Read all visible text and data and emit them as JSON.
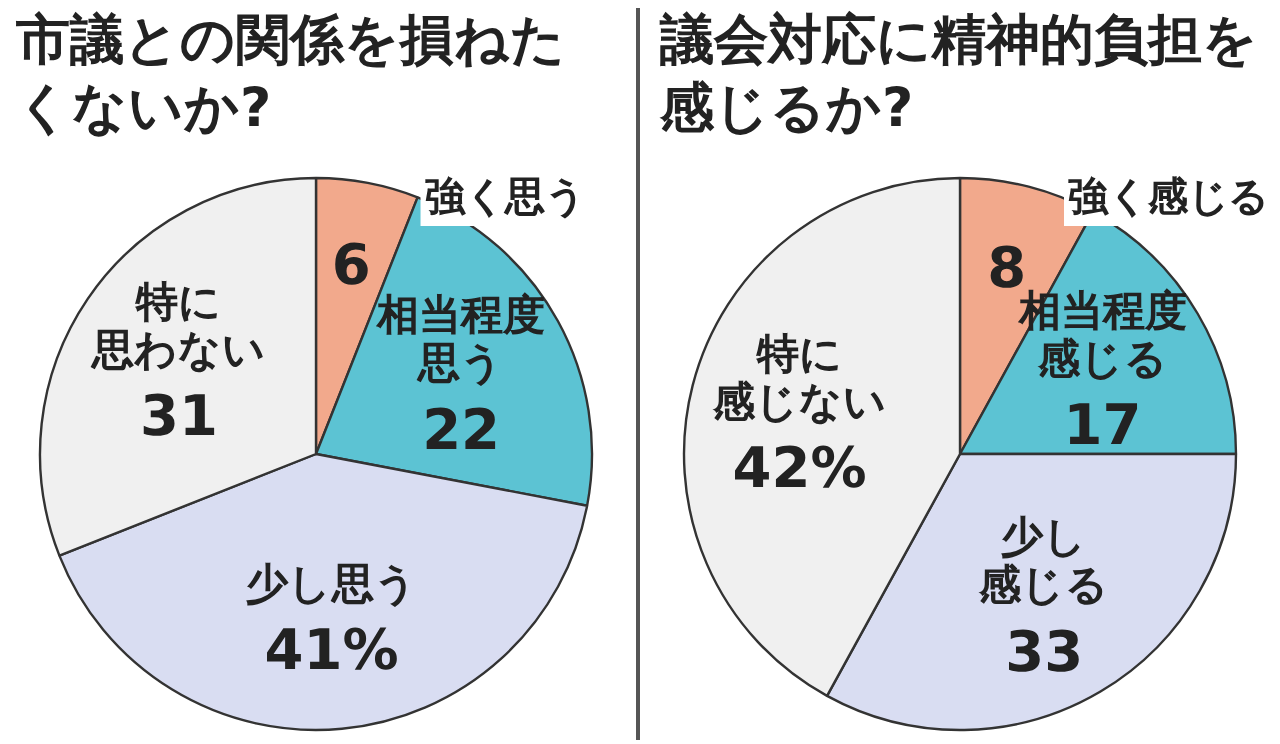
{
  "chart_data": [
    {
      "type": "pie",
      "title": "市議との関係を損ねたくないか?",
      "categories": [
        "強く思う",
        "相当程度思う",
        "少し思う",
        "特に思わない"
      ],
      "values": [
        6,
        22,
        41,
        31
      ],
      "value_labels": [
        "6",
        "22",
        "41%",
        "31"
      ],
      "colors": [
        "#f2a98c",
        "#5cc3d3",
        "#d9ddf2",
        "#f0f0f0"
      ]
    },
    {
      "type": "pie",
      "title": "議会対応に精神的負担を感じるか?",
      "categories": [
        "強く感じる",
        "相当程度感じる",
        "少し感じる",
        "特に感じない"
      ],
      "values": [
        8,
        17,
        33,
        42
      ],
      "value_labels": [
        "8",
        "17",
        "33",
        "42%"
      ],
      "colors": [
        "#f2a98c",
        "#5cc3d3",
        "#d9ddf2",
        "#f0f0f0"
      ]
    }
  ]
}
